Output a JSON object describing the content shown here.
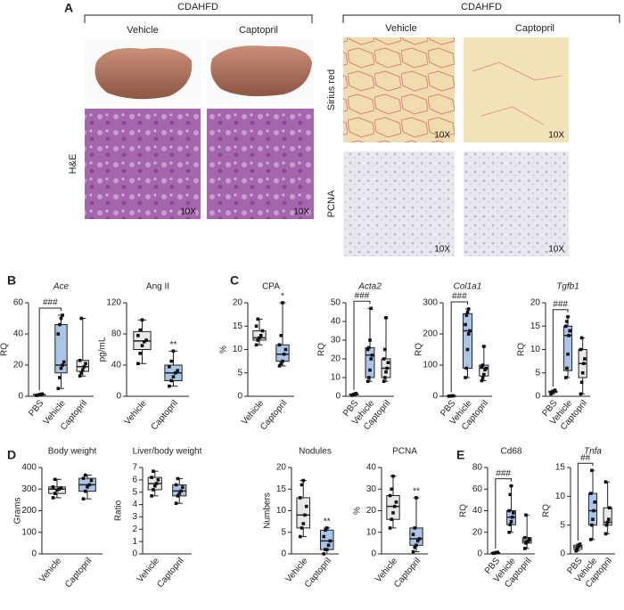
{
  "panel_a": {
    "label": "A",
    "left": {
      "header": "CDAHFD",
      "columns": [
        "Vehicle",
        "Captopril"
      ],
      "rows": [
        "H&E"
      ]
    },
    "right": {
      "header": "CDAHFD",
      "columns": [
        "Vehicle",
        "Captopril"
      ],
      "rows": [
        "Sirius red",
        "PCNA"
      ]
    },
    "magnification": "10X"
  },
  "panel_labels": [
    "B",
    "C",
    "D",
    "E"
  ],
  "chart_data": [
    {
      "type": "box",
      "title": "Ace",
      "title_italic": true,
      "ylabel": "RQ",
      "categories": [
        "PBS",
        "Vehicle",
        "Captopril"
      ],
      "colors": [
        "#ffffff",
        "#a9c5ea",
        "#e8e8e8"
      ],
      "boxes": [
        {
          "whislo": 0.5,
          "q1": 0.8,
          "med": 1,
          "q3": 1.2,
          "whishi": 1.5,
          "points": [
            0.5,
            0.8,
            1,
            1.2,
            1.5
          ]
        },
        {
          "whislo": 5,
          "q1": 15,
          "med": 20,
          "q3": 46,
          "whishi": 52,
          "points": [
            5,
            12,
            18,
            20,
            22,
            40,
            46,
            50,
            52
          ]
        },
        {
          "whislo": 13,
          "q1": 16,
          "med": 19,
          "q3": 23,
          "whishi": 50,
          "points": [
            13,
            15,
            17,
            19,
            21,
            23,
            50
          ]
        }
      ],
      "ylim": [
        0,
        60
      ],
      "yticks": [
        0,
        20,
        40,
        60
      ],
      "annotations": [
        {
          "text": "###",
          "bracket": [
            "PBS",
            "Vehicle"
          ]
        }
      ]
    },
    {
      "type": "box",
      "title": "Ang II",
      "title_italic": false,
      "ylabel": "pg/mL",
      "categories": [
        "Vehicle",
        "Captopril"
      ],
      "colors": [
        "#e8e8e8",
        "#a9c5ea"
      ],
      "boxes": [
        {
          "whislo": 42,
          "q1": 60,
          "med": 71,
          "q3": 83,
          "whishi": 98,
          "points": [
            42,
            55,
            65,
            70,
            72,
            78,
            85,
            98
          ]
        },
        {
          "whislo": 13,
          "q1": 20,
          "med": 30,
          "q3": 40,
          "whishi": 58,
          "points": [
            13,
            20,
            25,
            30,
            33,
            38,
            45,
            58
          ]
        }
      ],
      "ylim": [
        0,
        120
      ],
      "yticks": [
        0,
        40,
        80,
        120
      ],
      "annotations": [
        {
          "text": "**",
          "over": "Captopril"
        }
      ]
    },
    {
      "type": "box",
      "title": "CPA",
      "title_italic": false,
      "ylabel": "%",
      "categories": [
        "Vehicle",
        "Captopril"
      ],
      "colors": [
        "#e8e8e8",
        "#a9c5ea"
      ],
      "boxes": [
        {
          "whislo": 11,
          "q1": 12,
          "med": 12.5,
          "q3": 14,
          "whishi": 16.5,
          "points": [
            11,
            12,
            12.5,
            13,
            14,
            15,
            16.5
          ]
        },
        {
          "whislo": 6.5,
          "q1": 7.5,
          "med": 9,
          "q3": 11,
          "whishi": 20,
          "points": [
            6.5,
            7,
            7.5,
            9,
            10,
            11,
            13,
            20
          ]
        }
      ],
      "ylim": [
        0,
        20
      ],
      "yticks": [
        0,
        5,
        10,
        15,
        20
      ],
      "annotations": [
        {
          "text": "*",
          "over": "Captopril"
        }
      ]
    },
    {
      "type": "box",
      "title": "Acta2",
      "title_italic": true,
      "ylabel": "RQ",
      "categories": [
        "PBS",
        "Vehicle",
        "Captopril"
      ],
      "colors": [
        "#ffffff",
        "#a9c5ea",
        "#e8e8e8"
      ],
      "boxes": [
        {
          "whislo": 0.5,
          "q1": 0.8,
          "med": 1,
          "q3": 1.2,
          "whishi": 1.5,
          "points": [
            0.5,
            0.8,
            1,
            1.2,
            1.5
          ]
        },
        {
          "whislo": 8,
          "q1": 10,
          "med": 22,
          "q3": 26,
          "whishi": 47,
          "points": [
            8,
            10,
            14,
            20,
            22,
            25,
            26,
            30,
            47
          ]
        },
        {
          "whislo": 8,
          "q1": 10,
          "med": 15,
          "q3": 20,
          "whishi": 42,
          "points": [
            8,
            10,
            13,
            15,
            18,
            20,
            25,
            42
          ]
        }
      ],
      "ylim": [
        0,
        50
      ],
      "yticks": [
        0,
        10,
        20,
        30,
        40,
        50
      ],
      "annotations": [
        {
          "text": "###",
          "bracket": [
            "PBS",
            "Vehicle"
          ]
        }
      ]
    },
    {
      "type": "box",
      "title": "Col1a1",
      "title_italic": true,
      "ylabel": "RQ",
      "categories": [
        "PBS",
        "Vehicle",
        "Captopril"
      ],
      "colors": [
        "#ffffff",
        "#a9c5ea",
        "#e8e8e8"
      ],
      "boxes": [
        {
          "whislo": 0.5,
          "q1": 0.8,
          "med": 1,
          "q3": 1.2,
          "whishi": 1.5,
          "points": [
            0.5,
            0.8,
            1,
            1.2,
            1.5
          ]
        },
        {
          "whislo": 60,
          "q1": 90,
          "med": 210,
          "q3": 265,
          "whishi": 280,
          "points": [
            60,
            90,
            150,
            200,
            210,
            230,
            260,
            270,
            280
          ]
        },
        {
          "whislo": 50,
          "q1": 65,
          "med": 90,
          "q3": 100,
          "whishi": 160,
          "points": [
            50,
            60,
            70,
            85,
            90,
            95,
            100,
            160
          ]
        }
      ],
      "ylim": [
        0,
        300
      ],
      "yticks": [
        0,
        100,
        200,
        300
      ],
      "annotations": [
        {
          "text": "###",
          "bracket": [
            "PBS",
            "Vehicle"
          ]
        }
      ]
    },
    {
      "type": "box",
      "title": "Tgfb1",
      "title_italic": true,
      "ylabel": "RQ",
      "categories": [
        "PBS",
        "Vehicle",
        "Captopril"
      ],
      "colors": [
        "#ffffff",
        "#a9c5ea",
        "#e8e8e8"
      ],
      "boxes": [
        {
          "whislo": 0.5,
          "q1": 0.8,
          "med": 1,
          "q3": 1.1,
          "whishi": 1.3,
          "points": [
            0.5,
            0.8,
            1,
            1.1,
            1.3
          ]
        },
        {
          "whislo": 4,
          "q1": 5.5,
          "med": 13,
          "q3": 15,
          "whishi": 17,
          "points": [
            4,
            6,
            9,
            13,
            14,
            15,
            16,
            17
          ]
        },
        {
          "whislo": 0.5,
          "q1": 4,
          "med": 7,
          "q3": 10,
          "whishi": 12.5,
          "points": [
            0.5,
            3,
            5,
            7,
            8,
            10,
            12.5
          ]
        }
      ],
      "ylim": [
        0,
        20
      ],
      "yticks": [
        0,
        5,
        10,
        15,
        20
      ],
      "annotations": [
        {
          "text": "###",
          "bracket": [
            "PBS",
            "Vehicle"
          ]
        }
      ]
    },
    {
      "type": "box",
      "title": "Body weight",
      "title_italic": false,
      "ylabel": "Grams",
      "categories": [
        "Vehicle",
        "Captopril"
      ],
      "colors": [
        "#e8e8e8",
        "#a9c5ea"
      ],
      "boxes": [
        {
          "whislo": 260,
          "q1": 280,
          "med": 300,
          "q3": 310,
          "whishi": 345,
          "points": [
            260,
            280,
            295,
            300,
            305,
            310,
            345
          ]
        },
        {
          "whislo": 255,
          "q1": 290,
          "med": 320,
          "q3": 350,
          "whishi": 365,
          "points": [
            255,
            290,
            310,
            320,
            340,
            350,
            365
          ]
        }
      ],
      "ylim": [
        0,
        400
      ],
      "yticks": [
        0,
        100,
        200,
        300,
        400
      ],
      "annotations": []
    },
    {
      "type": "box",
      "title": "Liver/body weight",
      "title_italic": false,
      "ylabel": "Ratio",
      "categories": [
        "Vehicle",
        "Captopril"
      ],
      "colors": [
        "#e8e8e8",
        "#a9c5ea"
      ],
      "boxes": [
        {
          "whislo": 4.7,
          "q1": 5.2,
          "med": 5.7,
          "q3": 6.2,
          "whishi": 6.7,
          "points": [
            4.7,
            5.2,
            5.5,
            5.7,
            6,
            6.2,
            6.7
          ]
        },
        {
          "whislo": 4.1,
          "q1": 4.7,
          "med": 5.1,
          "q3": 5.6,
          "whishi": 6.1,
          "points": [
            4.1,
            4.7,
            4.9,
            5.1,
            5.4,
            5.6,
            6.1
          ]
        }
      ],
      "ylim": [
        0,
        7
      ],
      "yticks": [
        0,
        1,
        2,
        3,
        4,
        5,
        6,
        7
      ],
      "annotations": []
    },
    {
      "type": "box",
      "title": "Nodules",
      "title_italic": false,
      "ylabel": "Numbers",
      "categories": [
        "Vehicle",
        "Captopril"
      ],
      "colors": [
        "#e8e8e8",
        "#a9c5ea"
      ],
      "boxes": [
        {
          "whislo": 4,
          "q1": 6,
          "med": 9,
          "q3": 13,
          "whishi": 17,
          "points": [
            4,
            6,
            7,
            9,
            11,
            13,
            16,
            17
          ]
        },
        {
          "whislo": 0,
          "q1": 1,
          "med": 3,
          "q3": 5.5,
          "whishi": 6,
          "points": [
            0,
            1,
            1,
            2,
            3,
            4,
            5.5,
            6
          ]
        }
      ],
      "ylim": [
        0,
        20
      ],
      "yticks": [
        0,
        5,
        10,
        15,
        20
      ],
      "annotations": [
        {
          "text": "**",
          "over": "Captopril"
        }
      ]
    },
    {
      "type": "box",
      "title": "PCNA",
      "title_italic": false,
      "ylabel": "%",
      "categories": [
        "Vehicle",
        "Captopril"
      ],
      "colors": [
        "#e8e8e8",
        "#a9c5ea"
      ],
      "boxes": [
        {
          "whislo": 12,
          "q1": 16,
          "med": 22,
          "q3": 27,
          "whishi": 36,
          "points": [
            12,
            16,
            19,
            22,
            24,
            27,
            30,
            36
          ]
        },
        {
          "whislo": 1,
          "q1": 4,
          "med": 7,
          "q3": 12,
          "whishi": 26,
          "points": [
            1,
            3,
            4,
            6,
            7,
            9,
            12,
            26
          ]
        }
      ],
      "ylim": [
        0,
        40
      ],
      "yticks": [
        0,
        10,
        20,
        30,
        40
      ],
      "annotations": [
        {
          "text": "**",
          "over": "Captopril"
        }
      ]
    },
    {
      "type": "box",
      "title": "Cd68",
      "title_italic": false,
      "ylabel": "RQ",
      "categories": [
        "PBS",
        "Vehicle",
        "Captopril"
      ],
      "colors": [
        "#ffffff",
        "#a9c5ea",
        "#e8e8e8"
      ],
      "boxes": [
        {
          "whislo": 0.5,
          "q1": 0.8,
          "med": 1,
          "q3": 1.2,
          "whishi": 1.5,
          "points": [
            0.5,
            0.8,
            1,
            1.2,
            1.5
          ]
        },
        {
          "whislo": 20,
          "q1": 27,
          "med": 34,
          "q3": 40,
          "whishi": 63,
          "points": [
            20,
            27,
            30,
            34,
            38,
            40,
            55,
            63
          ]
        },
        {
          "whislo": 5,
          "q1": 10,
          "med": 12,
          "q3": 15,
          "whishi": 36,
          "points": [
            5,
            10,
            11,
            12,
            14,
            15,
            36
          ]
        }
      ],
      "ylim": [
        0,
        80
      ],
      "yticks": [
        0,
        20,
        40,
        60,
        80
      ],
      "annotations": [
        {
          "text": "###",
          "bracket": [
            "PBS",
            "Vehicle"
          ]
        }
      ]
    },
    {
      "type": "box",
      "title": "Tnfa",
      "title_italic": true,
      "ylabel": "RQ",
      "categories": [
        "PBS",
        "Vehicle",
        "Captopril"
      ],
      "colors": [
        "#ffffff",
        "#a9c5ea",
        "#e8e8e8"
      ],
      "boxes": [
        {
          "whislo": 0.5,
          "q1": 0.8,
          "med": 1.2,
          "q3": 1.5,
          "whishi": 1.7,
          "points": [
            0.5,
            0.8,
            1.2,
            1.5,
            1.7
          ]
        },
        {
          "whislo": 2.5,
          "q1": 5,
          "med": 7.5,
          "q3": 10.5,
          "whishi": 14.5,
          "points": [
            2.5,
            5,
            6,
            7.5,
            9,
            10.5,
            14.5
          ]
        },
        {
          "whislo": 3.5,
          "q1": 5,
          "med": 5.5,
          "q3": 8,
          "whishi": 12.5,
          "points": [
            3.5,
            5,
            5.5,
            6,
            8,
            12.5
          ]
        }
      ],
      "ylim": [
        0,
        15
      ],
      "yticks": [
        0,
        5,
        10,
        15
      ],
      "annotations": [
        {
          "text": "##",
          "bracket": [
            "PBS",
            "Vehicle"
          ]
        }
      ]
    }
  ]
}
